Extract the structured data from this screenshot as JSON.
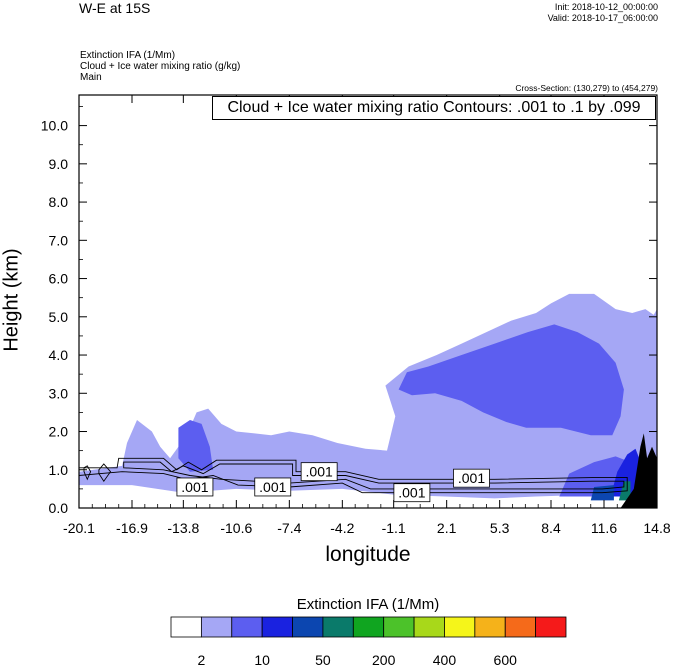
{
  "header": {
    "title": "W-E at 15S",
    "init": "Init: 2018-10-12_00:00:00",
    "valid": "Valid: 2018-10-17_06:00:00",
    "meta_lines": [
      "Extinction IFA   (1/Mm)",
      "Cloud + Ice water mixing ratio   (g/kg)",
      "Main"
    ],
    "cross_section": "Cross-Section: (130,279) to (454,279)"
  },
  "contour_info": "Cloud + Ice water mixing ratio Contours: .001 to .1 by .099",
  "colors": {
    "shade_light": "#a5a7f5",
    "shade_mid": "#5c5ef0",
    "shade_blue": "#1a22e0",
    "shade_dark": "#0c46b0",
    "teal": "#0a7a6a",
    "terrain": "#000000"
  },
  "colorbar": {
    "title": "Extinction IFA  (1/Mm)",
    "colors": [
      "#ffffff",
      "#a5a7f5",
      "#5c5ef0",
      "#1a22e0",
      "#0c46b0",
      "#0a7a6a",
      "#10a520",
      "#4cc22a",
      "#a8d81a",
      "#f5f51a",
      "#f5b21a",
      "#f56a1a",
      "#f51a1a"
    ],
    "labels": [
      "2",
      "10",
      "50",
      "200",
      "400",
      "600"
    ]
  },
  "chart_data": {
    "type": "heatmap",
    "title": "W-E at 15S",
    "xlabel": "longitude",
    "ylabel": "Height (km)",
    "x_ticks": [
      "-20.1",
      "-16.9",
      "-13.8",
      "-10.6",
      "-7.4",
      "-4.2",
      "-1.1",
      "2.1",
      "5.3",
      "8.4",
      "11.6",
      "14.8"
    ],
    "y_ticks": [
      "0.0",
      "1.0",
      "2.0",
      "3.0",
      "4.0",
      "5.0",
      "6.0",
      "7.0",
      "8.0",
      "9.0",
      "10.0"
    ],
    "xlim": [
      -20.1,
      14.8
    ],
    "ylim": [
      0,
      10.8
    ],
    "contour_labels": [
      {
        "text": ".001",
        "lon": -13.1,
        "h": 0.55
      },
      {
        "text": ".001",
        "lon": -8.4,
        "h": 0.55
      },
      {
        "text": ".001",
        "lon": -5.6,
        "h": 0.95
      },
      {
        "text": ".001",
        "lon": 0.0,
        "h": 0.4
      },
      {
        "text": ".001",
        "lon": 3.6,
        "h": 0.78
      }
    ],
    "regions": [
      {
        "level": "2-10",
        "color_key": "shade_light",
        "polygon": [
          [
            -20.1,
            0.95
          ],
          [
            -17.5,
            1.1
          ],
          [
            -17.2,
            1.7
          ],
          [
            -16.6,
            2.3
          ],
          [
            -15.7,
            2.0
          ],
          [
            -15.2,
            1.6
          ],
          [
            -14.6,
            1.3
          ],
          [
            -13.6,
            1.9
          ],
          [
            -13.0,
            2.5
          ],
          [
            -12.3,
            2.6
          ],
          [
            -11.5,
            2.2
          ],
          [
            -10.6,
            2.0
          ],
          [
            -9.5,
            1.95
          ],
          [
            -8.5,
            1.9
          ],
          [
            -7.4,
            2.0
          ],
          [
            -6.0,
            1.9
          ],
          [
            -4.5,
            1.7
          ],
          [
            -2.8,
            1.55
          ],
          [
            -1.5,
            1.5
          ],
          [
            -1.0,
            2.4
          ],
          [
            -1.6,
            3.2
          ],
          [
            -0.2,
            3.7
          ],
          [
            1.5,
            4.0
          ],
          [
            3.0,
            4.3
          ],
          [
            4.5,
            4.6
          ],
          [
            6.0,
            4.9
          ],
          [
            7.5,
            5.1
          ],
          [
            8.4,
            5.35
          ],
          [
            9.5,
            5.6
          ],
          [
            11.0,
            5.6
          ],
          [
            12.3,
            5.2
          ],
          [
            13.3,
            5.1
          ],
          [
            14.1,
            5.2
          ],
          [
            14.6,
            5.05
          ],
          [
            14.8,
            5.2
          ],
          [
            14.8,
            0.3
          ],
          [
            11.0,
            0.35
          ],
          [
            7.5,
            0.3
          ],
          [
            5.0,
            0.25
          ],
          [
            2.0,
            0.3
          ],
          [
            -1.1,
            0.35
          ],
          [
            -4.2,
            0.5
          ],
          [
            -7.4,
            0.45
          ],
          [
            -10.6,
            0.5
          ],
          [
            -13.8,
            0.4
          ],
          [
            -16.9,
            0.6
          ],
          [
            -20.1,
            0.6
          ]
        ]
      },
      {
        "level": "10-50",
        "color_key": "shade_mid",
        "polygon": [
          [
            -0.8,
            3.1
          ],
          [
            -0.3,
            3.55
          ],
          [
            1.0,
            3.7
          ],
          [
            3.0,
            4.0
          ],
          [
            5.0,
            4.3
          ],
          [
            7.0,
            4.6
          ],
          [
            8.6,
            4.8
          ],
          [
            10.0,
            4.6
          ],
          [
            11.3,
            4.3
          ],
          [
            12.3,
            3.8
          ],
          [
            12.8,
            3.1
          ],
          [
            12.6,
            2.4
          ],
          [
            12.1,
            1.9
          ],
          [
            10.8,
            1.9
          ],
          [
            9.0,
            2.1
          ],
          [
            6.9,
            2.1
          ],
          [
            5.7,
            2.25
          ],
          [
            4.3,
            2.5
          ],
          [
            3.0,
            2.8
          ],
          [
            1.4,
            3.0
          ],
          [
            0.0,
            2.95
          ]
        ]
      },
      {
        "level": "10-50",
        "color_key": "shade_mid",
        "polygon": [
          [
            -14.1,
            2.1
          ],
          [
            -13.4,
            2.3
          ],
          [
            -12.7,
            2.2
          ],
          [
            -12.2,
            1.6
          ],
          [
            -12.0,
            1.0
          ],
          [
            -13.4,
            0.95
          ],
          [
            -14.1,
            1.3
          ]
        ]
      },
      {
        "level": "10-50",
        "color_key": "shade_mid",
        "polygon": [
          [
            8.9,
            0.3
          ],
          [
            9.5,
            0.9
          ],
          [
            11.0,
            1.2
          ],
          [
            12.3,
            1.35
          ],
          [
            13.2,
            1.2
          ],
          [
            13.6,
            0.5
          ],
          [
            13.6,
            0.3
          ]
        ]
      },
      {
        "level": "50-200",
        "color_key": "shade_blue",
        "polygon": [
          [
            12.0,
            0.3
          ],
          [
            12.4,
            0.95
          ],
          [
            13.0,
            1.4
          ],
          [
            13.5,
            1.55
          ],
          [
            13.9,
            1.1
          ],
          [
            13.9,
            0.3
          ]
        ]
      },
      {
        "level": "200-400",
        "color_key": "shade_dark",
        "polygon": [
          [
            10.8,
            0.2
          ],
          [
            11.0,
            0.55
          ],
          [
            12.2,
            0.6
          ],
          [
            12.2,
            0.2
          ]
        ]
      },
      {
        "level": "teal",
        "color_key": "teal",
        "polygon": [
          [
            12.5,
            0.2
          ],
          [
            12.8,
            0.7
          ],
          [
            13.2,
            0.7
          ],
          [
            13.2,
            0.2
          ]
        ]
      }
    ],
    "cloud_contours": [
      [
        [
          -20.1,
          1.05
        ],
        [
          -17.8,
          1.05
        ],
        [
          -17.7,
          1.3
        ],
        [
          -15.0,
          1.3
        ],
        [
          -14.2,
          1.0
        ],
        [
          -13.5,
          1.2
        ],
        [
          -12.7,
          1.0
        ],
        [
          -11.8,
          1.25
        ],
        [
          -7.0,
          1.25
        ],
        [
          -7.0,
          0.95
        ],
        [
          -4.0,
          0.95
        ],
        [
          -2.0,
          0.75
        ],
        [
          5.0,
          0.75
        ],
        [
          11.3,
          0.8
        ],
        [
          13.0,
          0.8
        ],
        [
          13.0,
          0.45
        ],
        [
          11.5,
          0.4
        ],
        [
          -3.0,
          0.4
        ],
        [
          -4.2,
          0.65
        ],
        [
          -7.4,
          0.55
        ],
        [
          -10.5,
          0.6
        ],
        [
          -12.0,
          0.85
        ],
        [
          -13.6,
          0.75
        ],
        [
          -15.0,
          0.9
        ],
        [
          -17.5,
          0.95
        ],
        [
          -20.1,
          0.85
        ]
      ],
      [
        [
          -17.4,
          1.2
        ],
        [
          -15.2,
          1.2
        ],
        [
          -14.5,
          0.95
        ],
        [
          -13.8,
          1.1
        ],
        [
          -12.6,
          0.9
        ],
        [
          -11.6,
          1.15
        ],
        [
          -7.2,
          1.15
        ],
        [
          -7.2,
          0.85
        ],
        [
          -4.0,
          0.85
        ],
        [
          -2.0,
          0.65
        ],
        [
          5.0,
          0.65
        ],
        [
          10.9,
          0.7
        ],
        [
          12.8,
          0.7
        ],
        [
          12.8,
          0.55
        ],
        [
          11.5,
          0.5
        ],
        [
          -2.5,
          0.5
        ],
        [
          -4.0,
          0.75
        ],
        [
          -7.4,
          0.65
        ],
        [
          -11.5,
          0.75
        ],
        [
          -13.4,
          0.85
        ],
        [
          -15.0,
          1.0
        ],
        [
          -17.4,
          1.05
        ]
      ],
      [
        [
          -19.8,
          1.05
        ],
        [
          -19.6,
          1.1
        ],
        [
          -19.4,
          0.95
        ],
        [
          -19.6,
          0.75
        ],
        [
          -19.8,
          0.95
        ]
      ],
      [
        [
          -18.9,
          1.0
        ],
        [
          -18.6,
          1.15
        ],
        [
          -18.2,
          0.95
        ],
        [
          -18.6,
          0.7
        ],
        [
          -18.9,
          0.9
        ]
      ]
    ],
    "terrain_polygon": [
      [
        12.6,
        0.0
      ],
      [
        13.4,
        0.5
      ],
      [
        13.8,
        1.6
      ],
      [
        14.0,
        1.95
      ],
      [
        14.2,
        1.3
      ],
      [
        14.5,
        1.6
      ],
      [
        14.8,
        1.3
      ],
      [
        14.8,
        0.0
      ]
    ]
  }
}
